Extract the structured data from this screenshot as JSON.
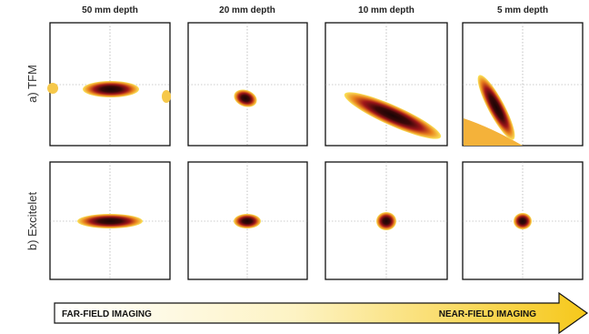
{
  "headers": [
    "50 mm depth",
    "20 mm depth",
    "10 mm depth",
    "5 mm depth"
  ],
  "rows": [
    "a) TFM",
    "b) Excitelet"
  ],
  "arrow": {
    "left": "FAR-FIELD IMAGING",
    "right": "NEAR-FIELD IMAGING"
  }
}
